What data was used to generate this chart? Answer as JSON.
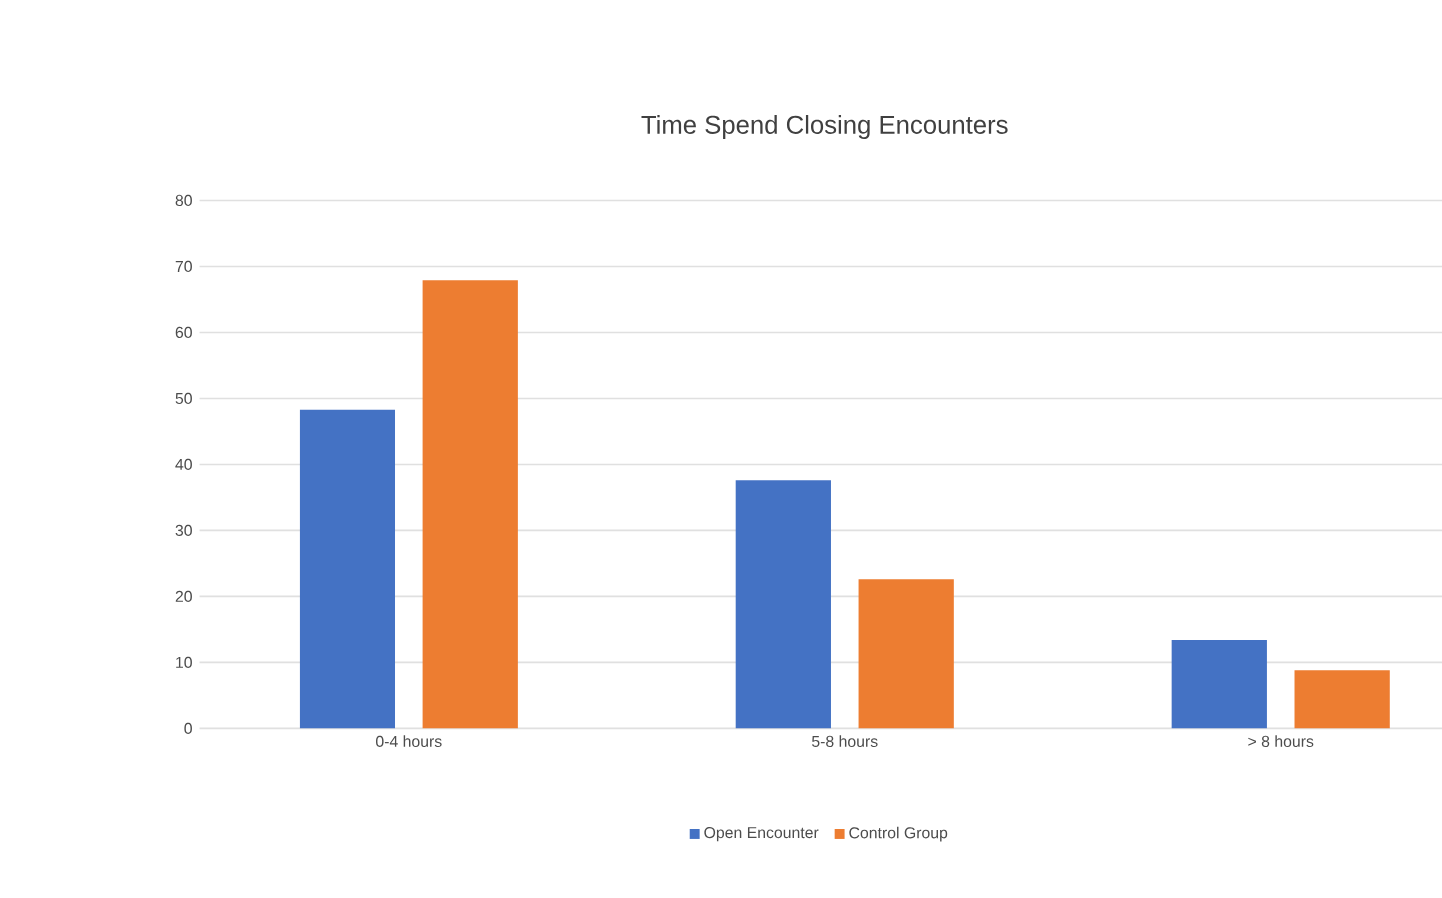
{
  "chart_data": {
    "type": "bar",
    "title": "Time Spend Closing Encounters",
    "categories": [
      "0-4 hours",
      "5-8 hours",
      "> 8 hours"
    ],
    "series": [
      {
        "name": "Open Encounter",
        "color": "#4472c4",
        "values": [
          48.3,
          37.6,
          13.4
        ]
      },
      {
        "name": "Control Group",
        "color": "#ed7d31",
        "values": [
          67.9,
          22.6,
          8.8
        ]
      }
    ],
    "ylim": [
      0,
      80
    ],
    "yticks": [
      0,
      10,
      20,
      30,
      40,
      50,
      60,
      70,
      80
    ],
    "grid": "y",
    "legend": "bottom"
  }
}
